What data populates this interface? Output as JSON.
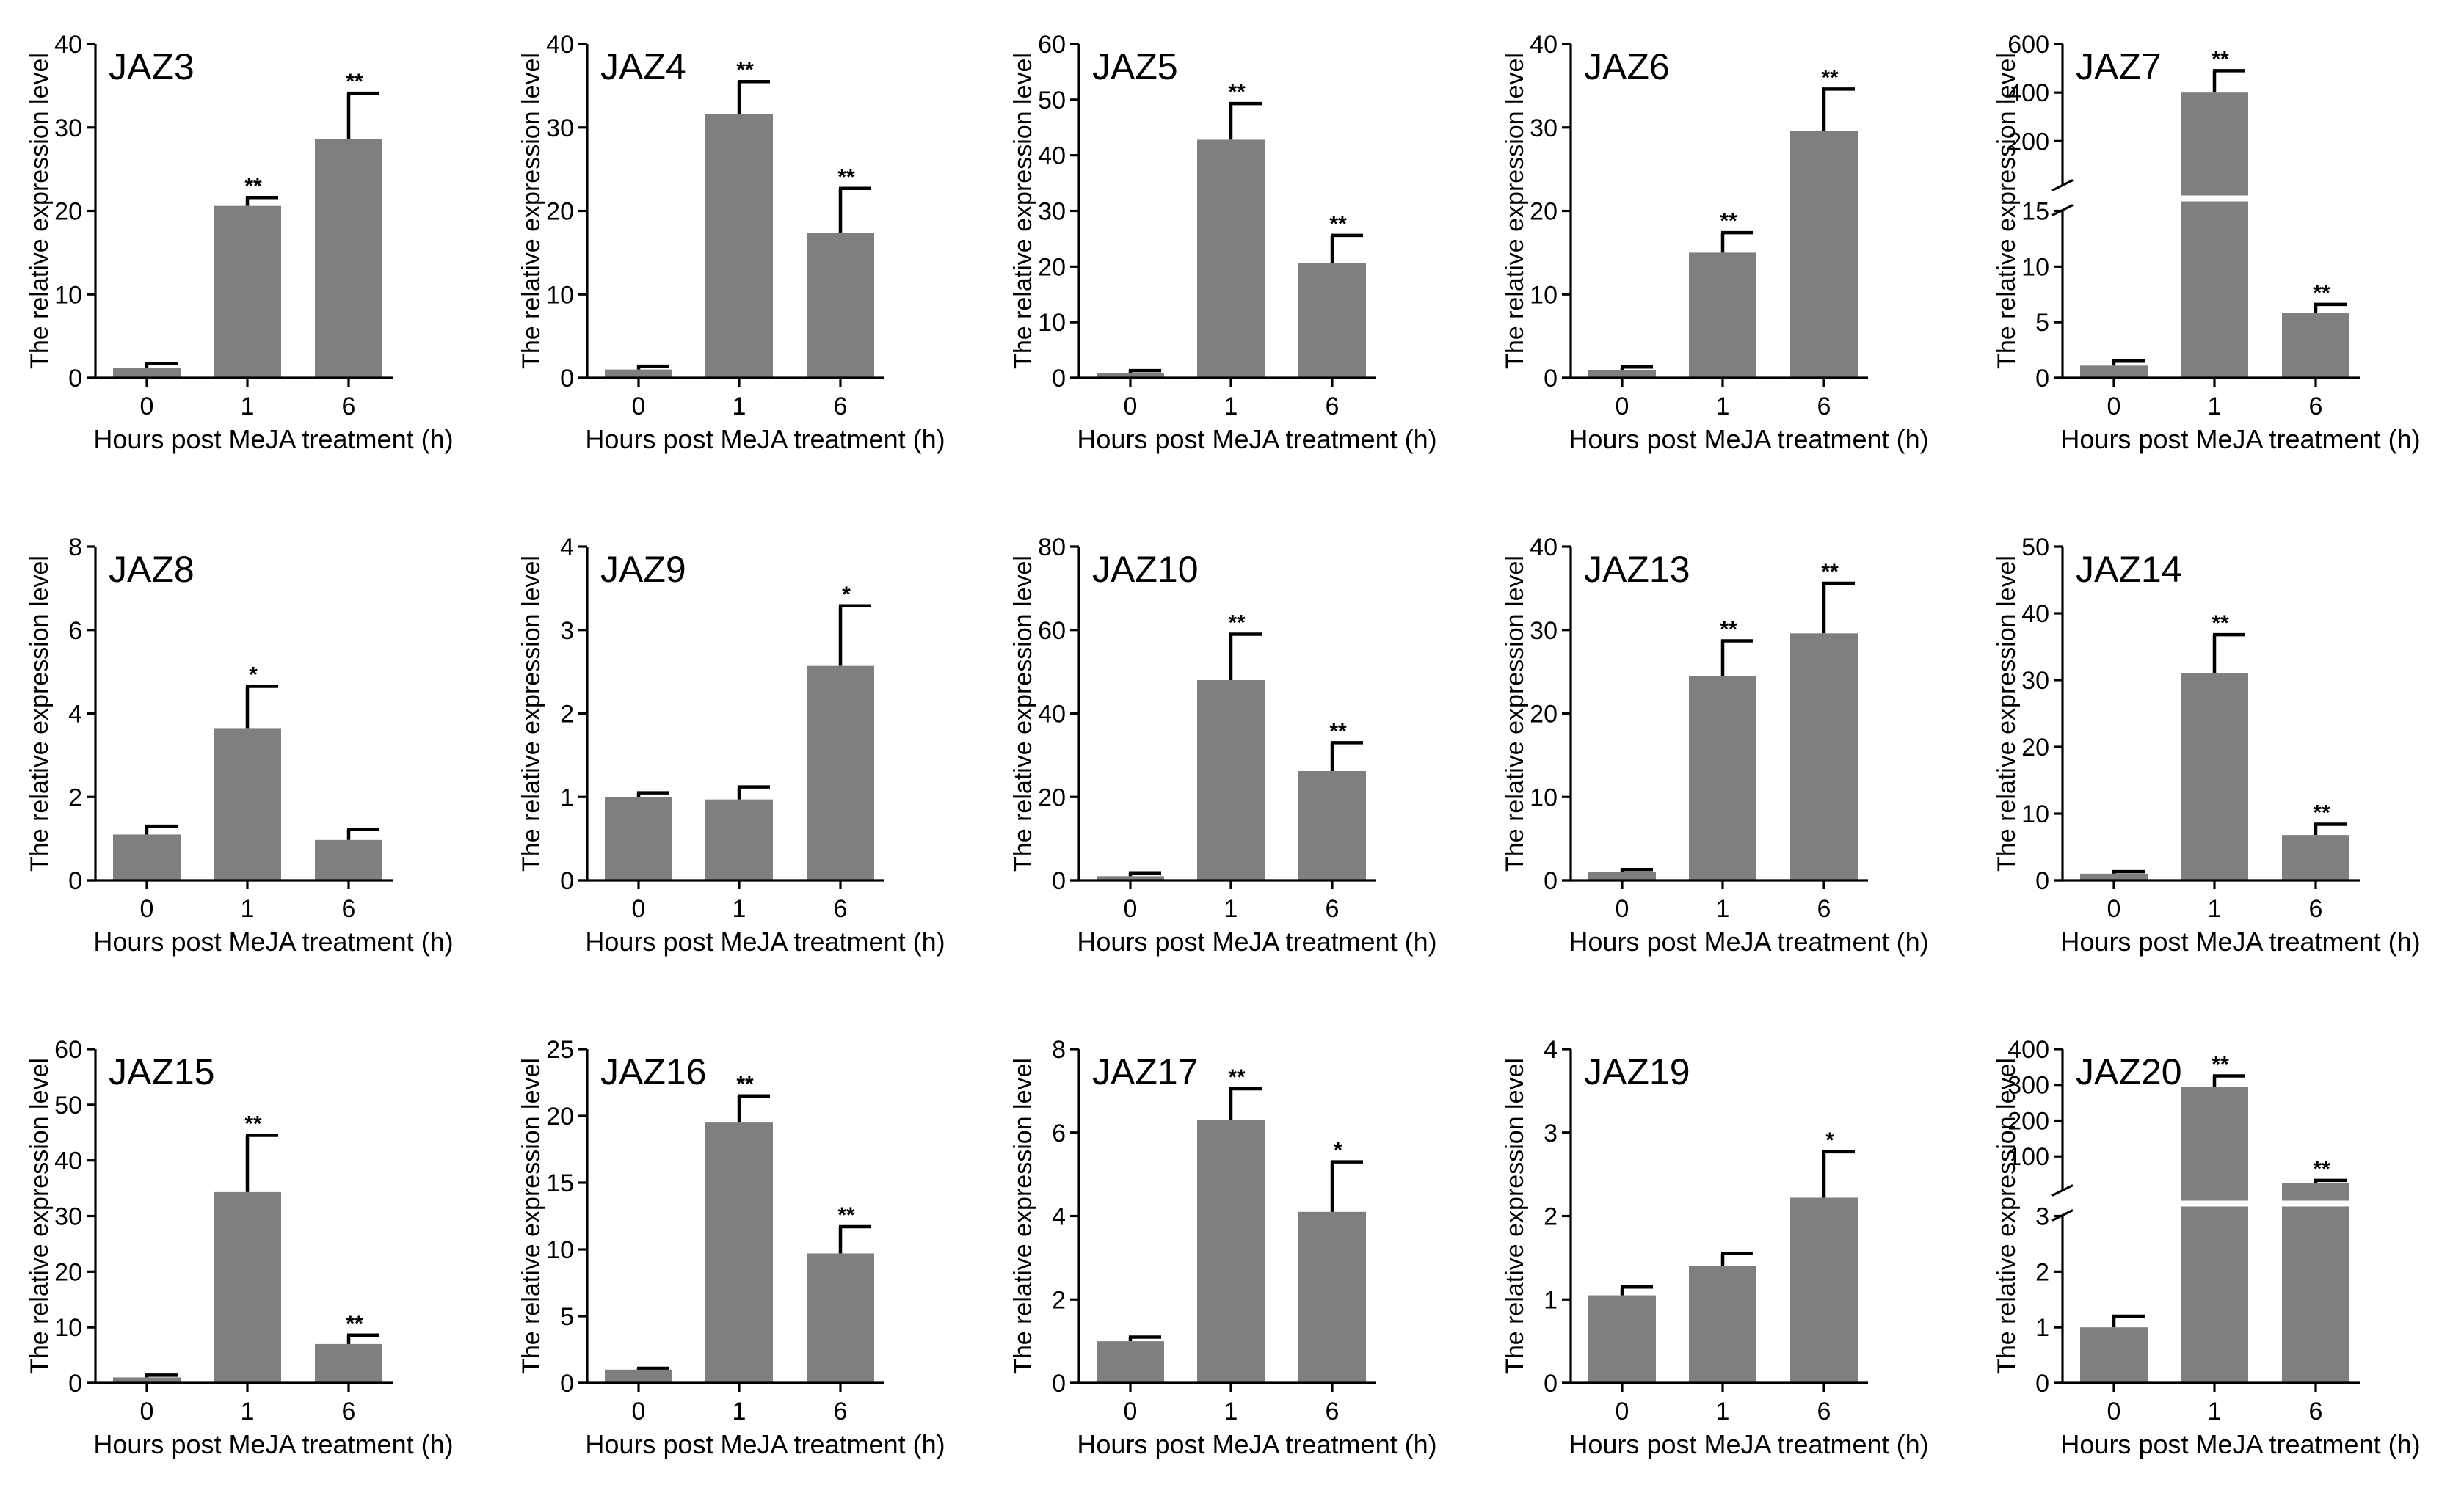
{
  "style": {
    "bar_color": "#7f7f7f",
    "axis_color": "#000000"
  },
  "chart_data": [
    {
      "type": "bar",
      "title": "JAZ3",
      "ylabel": "The relative expression level",
      "xlabel": "Hours post MeJA treatment (h)",
      "categories": [
        "0",
        "1",
        "6"
      ],
      "values": [
        1.2,
        20.6,
        28.6
      ],
      "errors": [
        0.5,
        1.0,
        5.5
      ],
      "significance": [
        "",
        "**",
        "**"
      ],
      "ylim": [
        0,
        40
      ],
      "yticks": [
        0,
        10,
        20,
        30,
        40
      ]
    },
    {
      "type": "bar",
      "title": "JAZ4",
      "ylabel": "The relative expression level",
      "xlabel": "Hours post MeJA treatment (h)",
      "categories": [
        "0",
        "1",
        "6"
      ],
      "values": [
        1.0,
        31.6,
        17.4
      ],
      "errors": [
        0.4,
        3.9,
        5.3
      ],
      "significance": [
        "",
        "**",
        "**"
      ],
      "ylim": [
        0,
        40
      ],
      "yticks": [
        0,
        10,
        20,
        30,
        40
      ]
    },
    {
      "type": "bar",
      "title": "JAZ5",
      "ylabel": "The relative expression level",
      "xlabel": "Hours post MeJA treatment (h)",
      "categories": [
        "0",
        "1",
        "6"
      ],
      "values": [
        0.9,
        42.8,
        20.6
      ],
      "errors": [
        0.4,
        6.5,
        5.0
      ],
      "significance": [
        "",
        "**",
        "**"
      ],
      "ylim": [
        0,
        60
      ],
      "yticks": [
        0,
        10,
        20,
        30,
        40,
        50,
        60
      ]
    },
    {
      "type": "bar",
      "title": "JAZ6",
      "ylabel": "The relative expression level",
      "xlabel": "Hours post MeJA treatment (h)",
      "categories": [
        "0",
        "1",
        "6"
      ],
      "values": [
        0.9,
        15.0,
        29.6
      ],
      "errors": [
        0.4,
        2.4,
        5.0
      ],
      "significance": [
        "",
        "**",
        "**"
      ],
      "ylim": [
        0,
        40
      ],
      "yticks": [
        0,
        10,
        20,
        30,
        40
      ]
    },
    {
      "type": "bar",
      "title": "JAZ7",
      "ylabel": "The relative expression level",
      "xlabel": "Hours post MeJA treatment (h)",
      "categories": [
        "0",
        "1",
        "6"
      ],
      "values": [
        1.1,
        400,
        5.8
      ],
      "errors": [
        0.4,
        90,
        0.8
      ],
      "significance": [
        "",
        "**",
        "**"
      ],
      "ylim": [
        0,
        600
      ],
      "yticks": [
        0,
        5,
        10,
        15,
        200,
        400,
        600
      ],
      "axis_break": {
        "lower_max": 15,
        "upper_min": 15,
        "upper_max": 600
      }
    },
    {
      "type": "bar",
      "title": "JAZ8",
      "ylabel": "The relative expression level",
      "xlabel": "Hours post MeJA treatment (h)",
      "categories": [
        "0",
        "1",
        "6"
      ],
      "values": [
        1.1,
        3.65,
        0.97
      ],
      "errors": [
        0.2,
        1.0,
        0.25
      ],
      "significance": [
        "",
        "*",
        ""
      ],
      "ylim": [
        0,
        8
      ],
      "yticks": [
        0,
        2,
        4,
        6,
        8
      ]
    },
    {
      "type": "bar",
      "title": "JAZ9",
      "ylabel": "The relative expression level",
      "xlabel": "Hours post MeJA treatment (h)",
      "categories": [
        "0",
        "1",
        "6"
      ],
      "values": [
        1.0,
        0.97,
        2.57
      ],
      "errors": [
        0.05,
        0.15,
        0.72
      ],
      "significance": [
        "",
        "",
        "*"
      ],
      "ylim": [
        0,
        4
      ],
      "yticks": [
        0,
        1,
        2,
        3,
        4
      ]
    },
    {
      "type": "bar",
      "title": "JAZ10",
      "ylabel": "The relative expression level",
      "xlabel": "Hours post MeJA treatment (h)",
      "categories": [
        "0",
        "1",
        "6"
      ],
      "values": [
        1.0,
        48.0,
        26.2
      ],
      "errors": [
        0.8,
        11.0,
        6.8
      ],
      "significance": [
        "",
        "**",
        "**"
      ],
      "ylim": [
        0,
        80
      ],
      "yticks": [
        0,
        20,
        40,
        60,
        80
      ]
    },
    {
      "type": "bar",
      "title": "JAZ13",
      "ylabel": "The relative expression level",
      "xlabel": "Hours post MeJA treatment (h)",
      "categories": [
        "0",
        "1",
        "6"
      ],
      "values": [
        1.0,
        24.5,
        29.6
      ],
      "errors": [
        0.3,
        4.2,
        6.0
      ],
      "significance": [
        "",
        "**",
        "**"
      ],
      "ylim": [
        0,
        40
      ],
      "yticks": [
        0,
        10,
        20,
        30,
        40
      ]
    },
    {
      "type": "bar",
      "title": "JAZ14",
      "ylabel": "The relative expression level",
      "xlabel": "Hours post MeJA treatment (h)",
      "categories": [
        "0",
        "1",
        "6"
      ],
      "values": [
        1.0,
        31.0,
        6.8
      ],
      "errors": [
        0.3,
        5.8,
        1.6
      ],
      "significance": [
        "",
        "**",
        "**"
      ],
      "ylim": [
        0,
        50
      ],
      "yticks": [
        0,
        10,
        20,
        30,
        40,
        50
      ]
    },
    {
      "type": "bar",
      "title": "JAZ15",
      "ylabel": "The relative expression level",
      "xlabel": "Hours post MeJA treatment (h)",
      "categories": [
        "0",
        "1",
        "6"
      ],
      "values": [
        1.0,
        34.3,
        7.0
      ],
      "errors": [
        0.4,
        10.2,
        1.6
      ],
      "significance": [
        "",
        "**",
        "**"
      ],
      "ylim": [
        0,
        60
      ],
      "yticks": [
        0,
        10,
        20,
        30,
        40,
        50,
        60
      ]
    },
    {
      "type": "bar",
      "title": "JAZ16",
      "ylabel": "The relative expression level",
      "xlabel": "Hours post MeJA treatment (h)",
      "categories": [
        "0",
        "1",
        "6"
      ],
      "values": [
        1.0,
        19.5,
        9.7
      ],
      "errors": [
        0.1,
        2.0,
        2.0
      ],
      "significance": [
        "",
        "**",
        "**"
      ],
      "ylim": [
        0,
        25
      ],
      "yticks": [
        0,
        5,
        10,
        15,
        20,
        25
      ]
    },
    {
      "type": "bar",
      "title": "JAZ17",
      "ylabel": "The relative expression level",
      "xlabel": "Hours post MeJA treatment (h)",
      "categories": [
        "0",
        "1",
        "6"
      ],
      "values": [
        1.0,
        6.3,
        4.1
      ],
      "errors": [
        0.1,
        0.75,
        1.2
      ],
      "significance": [
        "",
        "**",
        "*"
      ],
      "ylim": [
        0,
        8
      ],
      "yticks": [
        0,
        2,
        4,
        6,
        8
      ]
    },
    {
      "type": "bar",
      "title": "JAZ19",
      "ylabel": "The relative expression level",
      "xlabel": "Hours post MeJA treatment (h)",
      "categories": [
        "0",
        "1",
        "6"
      ],
      "values": [
        1.05,
        1.4,
        2.22
      ],
      "errors": [
        0.1,
        0.15,
        0.55
      ],
      "significance": [
        "",
        "",
        "*"
      ],
      "ylim": [
        0,
        4
      ],
      "yticks": [
        0,
        1,
        2,
        3,
        4
      ]
    },
    {
      "type": "bar",
      "title": "JAZ20",
      "ylabel": "The relative expression level",
      "xlabel": "Hours post MeJA treatment (h)",
      "categories": [
        "0",
        "1",
        "6"
      ],
      "values": [
        1.0,
        295,
        25
      ],
      "errors": [
        0.2,
        30,
        8
      ],
      "significance": [
        "",
        "**",
        "**"
      ],
      "ylim": [
        0,
        400
      ],
      "yticks": [
        0,
        1,
        2,
        3,
        100,
        200,
        300,
        400
      ],
      "axis_break": {
        "lower_max": 3,
        "upper_min": 3,
        "upper_max": 400
      }
    }
  ]
}
